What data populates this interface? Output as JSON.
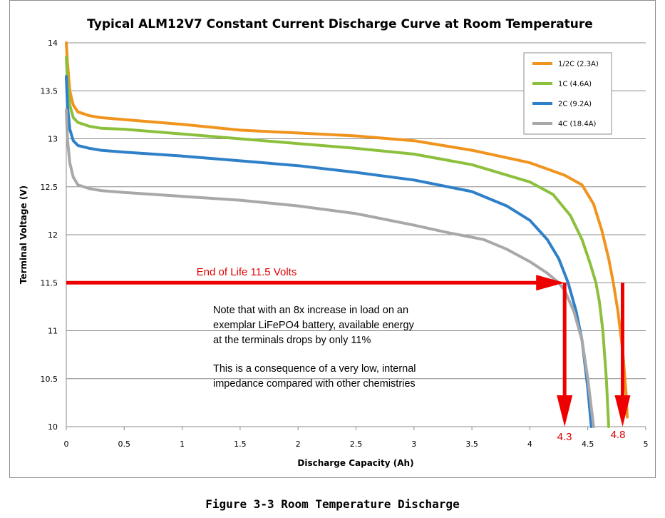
{
  "chart_data": {
    "type": "line",
    "title": "Typical ALM12V7 Constant Current Discharge Curve at Room Temperature",
    "xlabel": "Discharge Capacity (Ah)",
    "ylabel": "Terminal Voltage (V)",
    "xlim": [
      0,
      5
    ],
    "ylim": [
      10,
      14
    ],
    "x_ticks": [
      "0",
      "0.5",
      "1",
      "1.5",
      "2",
      "2.5",
      "3",
      "3.5",
      "4",
      "4.5",
      "5"
    ],
    "y_ticks": [
      "10",
      "10.5",
      "11",
      "11.5",
      "12",
      "12.5",
      "13",
      "13.5",
      "14"
    ],
    "grid": "horizontal",
    "legend_position": "top-right",
    "series": [
      {
        "name": "1/2C (2.3A)",
        "color": "#f0941e",
        "x": [
          0,
          0.01,
          0.03,
          0.06,
          0.1,
          0.2,
          0.3,
          0.5,
          1.0,
          1.5,
          2.0,
          2.5,
          3.0,
          3.5,
          4.0,
          4.3,
          4.45,
          4.55,
          4.62,
          4.68,
          4.72,
          4.76,
          4.8,
          4.83,
          4.84
        ],
        "y": [
          14.0,
          13.8,
          13.5,
          13.35,
          13.28,
          13.24,
          13.22,
          13.2,
          13.15,
          13.09,
          13.06,
          13.03,
          12.98,
          12.88,
          12.75,
          12.62,
          12.52,
          12.32,
          12.05,
          11.75,
          11.5,
          11.2,
          10.8,
          10.35,
          10.1
        ]
      },
      {
        "name": "1C (4.6A)",
        "color": "#8cc03c",
        "x": [
          0,
          0.01,
          0.03,
          0.06,
          0.1,
          0.2,
          0.3,
          0.5,
          1.0,
          1.5,
          2.0,
          2.5,
          3.0,
          3.5,
          4.0,
          4.2,
          4.35,
          4.45,
          4.52,
          4.57,
          4.6,
          4.63,
          4.66,
          4.68
        ],
        "y": [
          13.85,
          13.6,
          13.35,
          13.22,
          13.17,
          13.13,
          13.11,
          13.1,
          13.05,
          13.0,
          12.95,
          12.9,
          12.84,
          12.73,
          12.55,
          12.42,
          12.2,
          11.95,
          11.7,
          11.5,
          11.3,
          11.0,
          10.5,
          10.0
        ]
      },
      {
        "name": "2C (9.2A)",
        "color": "#2f80c8",
        "x": [
          0,
          0.01,
          0.03,
          0.06,
          0.1,
          0.2,
          0.3,
          0.5,
          1.0,
          1.5,
          2.0,
          2.5,
          3.0,
          3.5,
          3.8,
          4.0,
          4.15,
          4.25,
          4.33,
          4.4,
          4.45,
          4.5,
          4.53
        ],
        "y": [
          13.65,
          13.35,
          13.1,
          12.98,
          12.93,
          12.9,
          12.88,
          12.86,
          12.82,
          12.77,
          12.72,
          12.65,
          12.57,
          12.45,
          12.3,
          12.15,
          11.95,
          11.75,
          11.5,
          11.2,
          10.9,
          10.4,
          10.0
        ]
      },
      {
        "name": "4C (18.4A)",
        "color": "#a8a8a8",
        "x": [
          0,
          0.01,
          0.03,
          0.06,
          0.1,
          0.2,
          0.3,
          0.5,
          1.0,
          1.5,
          2.0,
          2.5,
          3.0,
          3.3,
          3.6,
          3.8,
          4.0,
          4.15,
          4.25,
          4.3,
          4.38,
          4.45,
          4.5,
          4.55
        ],
        "y": [
          13.3,
          13.0,
          12.75,
          12.6,
          12.52,
          12.48,
          12.46,
          12.44,
          12.4,
          12.36,
          12.3,
          12.22,
          12.1,
          12.02,
          11.95,
          11.85,
          11.72,
          11.6,
          11.5,
          11.42,
          11.2,
          10.9,
          10.5,
          10.0
        ]
      }
    ],
    "annotations": {
      "end_of_life_label": "End of Life 11.5 Volts",
      "end_of_life_voltage": 11.5,
      "marker_left_value": 4.3,
      "marker_left_label": "4.3",
      "marker_right_value": 4.8,
      "marker_right_label": "4.8",
      "note_lines": [
        "Note that with an 8x increase in load on an",
        "exemplar LiFePO4 battery, available energy",
        "at the terminals drops by only 11%",
        "",
        "This is a consequence of a very low, internal",
        "impedance compared with other chemistries"
      ],
      "arrow_color": "#ee0000"
    }
  },
  "caption": "Figure 3-3 Room Temperature Discharge"
}
